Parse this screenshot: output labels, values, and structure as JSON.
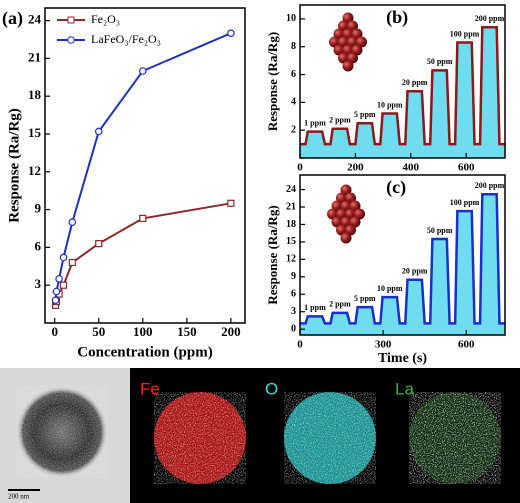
{
  "chart_data": [
    {
      "type": "line",
      "panel_label": "(a)",
      "x_label": "Concentration (ppm)",
      "y_label": "Response (Ra/Rg)",
      "x": [
        1,
        2,
        5,
        10,
        20,
        50,
        100,
        200
      ],
      "series": [
        {
          "name": "Fe₂O₃",
          "color": "#8b2a2a",
          "marker": "square",
          "values": [
            1.4,
            1.7,
            2.3,
            3.0,
            4.8,
            6.3,
            8.3,
            9.5
          ]
        },
        {
          "name": "LaFeO₃/Fe₂O₃",
          "color": "#1f2fbf",
          "marker": "circle",
          "values": [
            1.8,
            2.5,
            3.5,
            5.2,
            8.0,
            15.2,
            20.0,
            23.0
          ]
        }
      ],
      "xlim": [
        -11,
        216
      ],
      "xticks": [
        0,
        50,
        100,
        150,
        200
      ],
      "ylim": [
        0,
        25
      ],
      "yticks": [
        3,
        6,
        9,
        12,
        15,
        18,
        21,
        24
      ],
      "legend": "upper left"
    },
    {
      "type": "line",
      "panel_label": "(b)",
      "y_label": "Response (Ra/Rg)",
      "x": [
        0,
        20,
        28,
        80,
        90,
        110,
        118,
        170,
        180,
        200,
        208,
        260,
        270,
        290,
        298,
        350,
        360,
        380,
        388,
        440,
        450,
        470,
        478,
        530,
        540,
        560,
        568,
        620,
        630,
        650,
        658,
        710,
        720,
        740
      ],
      "series": [
        {
          "color": "#8b1a1a",
          "area_color": "#56d6ec",
          "values": [
            1,
            1,
            1.9,
            1.9,
            1,
            1,
            2.1,
            2.1,
            1,
            1,
            2.5,
            2.5,
            1,
            1,
            3.2,
            3.2,
            1,
            1,
            4.8,
            4.8,
            1,
            1,
            6.3,
            6.3,
            1,
            1,
            8.3,
            8.3,
            1,
            1,
            9.4,
            9.4,
            1,
            1
          ]
        }
      ],
      "annotations": [
        "1 ppm",
        "2 ppm",
        "5 ppm",
        "10 ppm",
        "20 ppm",
        "50 ppm",
        "100 ppm",
        "200 ppm"
      ],
      "xlim": [
        0,
        740
      ],
      "xticks": [
        0,
        200,
        400,
        600
      ],
      "ylim": [
        0,
        11
      ],
      "yticks": [
        2,
        4,
        6,
        8,
        10
      ]
    },
    {
      "type": "line",
      "panel_label": "(c)",
      "x_label": "Time (s)",
      "y_label": "Response (Ra/Rg)",
      "x": [
        0,
        20,
        28,
        80,
        90,
        110,
        118,
        170,
        180,
        200,
        208,
        260,
        270,
        290,
        298,
        350,
        360,
        380,
        388,
        440,
        450,
        470,
        478,
        530,
        540,
        560,
        568,
        620,
        630,
        650,
        658,
        710,
        720,
        740
      ],
      "series": [
        {
          "color": "#1a2fcc",
          "area_color": "#56d6ec",
          "values": [
            1,
            1,
            2.2,
            2.2,
            1,
            1,
            2.8,
            2.8,
            1,
            1,
            3.8,
            3.8,
            1,
            1,
            5.5,
            5.5,
            1,
            1,
            8.5,
            8.5,
            1,
            1,
            15.5,
            15.5,
            1,
            1,
            20.3,
            20.3,
            1,
            1,
            23.2,
            23.2,
            1,
            1
          ]
        }
      ],
      "annotations": [
        "1 ppm",
        "2 ppm",
        "5 ppm",
        "10 ppm",
        "20 ppm",
        "50 ppm",
        "100 ppm",
        "200 ppm"
      ],
      "xlim": [
        0,
        740
      ],
      "xticks": [
        0,
        300,
        600
      ],
      "ylim": [
        -1,
        26.5
      ],
      "yticks": [
        0,
        3,
        6,
        9,
        12,
        15,
        18,
        21,
        24
      ]
    }
  ],
  "images": {
    "labels": [
      "Fe",
      "O",
      "La"
    ],
    "scale_bar": "200 nm"
  }
}
